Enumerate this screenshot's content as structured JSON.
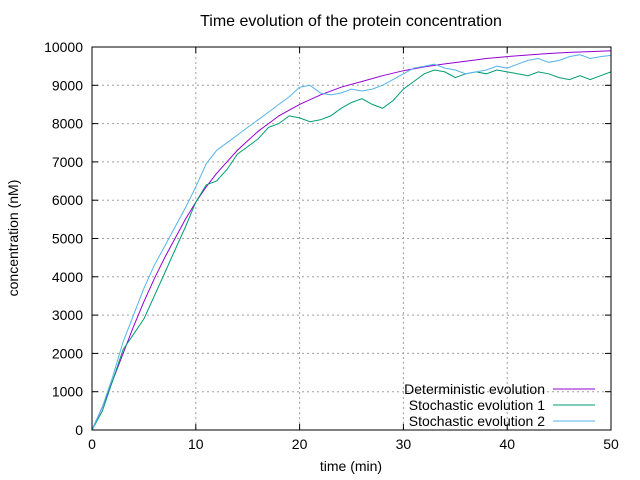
{
  "chart_data": {
    "type": "line",
    "title": "Time evolution of the protein concentration",
    "xlabel": "time (min)",
    "ylabel": "concentration (nM)",
    "xlim": [
      0,
      50
    ],
    "ylim": [
      0,
      10000
    ],
    "xticks": [
      0,
      10,
      20,
      30,
      40,
      50
    ],
    "yticks": [
      0,
      1000,
      2000,
      3000,
      4000,
      5000,
      6000,
      7000,
      8000,
      9000,
      10000
    ],
    "grid": true,
    "legend_position": "bottom-right",
    "series": [
      {
        "name": "Deterministic evolution",
        "color": "#9400d3",
        "x": [
          0,
          1,
          2,
          3,
          4,
          5,
          6,
          7,
          8,
          9,
          10,
          11,
          12,
          13,
          14,
          15,
          16,
          17,
          18,
          19,
          20,
          22,
          24,
          26,
          28,
          30,
          32,
          34,
          36,
          38,
          40,
          42,
          44,
          46,
          48,
          50
        ],
        "y": [
          0,
          600,
          1300,
          2000,
          2700,
          3350,
          3950,
          4500,
          5000,
          5500,
          5950,
          6350,
          6700,
          7000,
          7300,
          7550,
          7800,
          8000,
          8200,
          8350,
          8500,
          8750,
          8950,
          9100,
          9250,
          9380,
          9480,
          9560,
          9630,
          9700,
          9750,
          9790,
          9830,
          9860,
          9880,
          9900
        ]
      },
      {
        "name": "Stochastic evolution 1",
        "color": "#009e73",
        "x": [
          0,
          1,
          2,
          3,
          4,
          5,
          6,
          7,
          8,
          9,
          10,
          11,
          12,
          13,
          14,
          15,
          16,
          17,
          18,
          19,
          20,
          21,
          22,
          23,
          24,
          25,
          26,
          27,
          28,
          29,
          30,
          31,
          32,
          33,
          34,
          35,
          36,
          37,
          38,
          39,
          40,
          41,
          42,
          43,
          44,
          45,
          46,
          47,
          48,
          49,
          50
        ],
        "y": [
          0,
          500,
          1300,
          2100,
          2500,
          2900,
          3500,
          4100,
          4700,
          5300,
          5950,
          6400,
          6500,
          6800,
          7200,
          7400,
          7600,
          7900,
          8000,
          8200,
          8150,
          8050,
          8100,
          8200,
          8400,
          8550,
          8650,
          8500,
          8400,
          8600,
          8900,
          9100,
          9300,
          9400,
          9350,
          9200,
          9300,
          9350,
          9300,
          9400,
          9350,
          9300,
          9250,
          9350,
          9300,
          9200,
          9150,
          9250,
          9150,
          9250,
          9350
        ]
      },
      {
        "name": "Stochastic evolution 2",
        "color": "#56b4e9",
        "x": [
          0,
          1,
          2,
          3,
          4,
          5,
          6,
          7,
          8,
          9,
          10,
          11,
          12,
          13,
          14,
          15,
          16,
          17,
          18,
          19,
          20,
          21,
          22,
          23,
          24,
          25,
          26,
          27,
          28,
          29,
          30,
          31,
          32,
          33,
          34,
          35,
          36,
          37,
          38,
          39,
          40,
          41,
          42,
          43,
          44,
          45,
          46,
          47,
          48,
          49,
          50
        ],
        "y": [
          0,
          600,
          1400,
          2300,
          3000,
          3700,
          4300,
          4800,
          5300,
          5800,
          6350,
          6950,
          7300,
          7500,
          7700,
          7900,
          8100,
          8300,
          8500,
          8700,
          8950,
          9000,
          8800,
          8750,
          8800,
          8900,
          8850,
          8900,
          9000,
          9150,
          9300,
          9450,
          9500,
          9550,
          9450,
          9400,
          9300,
          9350,
          9400,
          9500,
          9450,
          9550,
          9650,
          9700,
          9600,
          9650,
          9750,
          9800,
          9700,
          9750,
          9780
        ]
      }
    ]
  }
}
